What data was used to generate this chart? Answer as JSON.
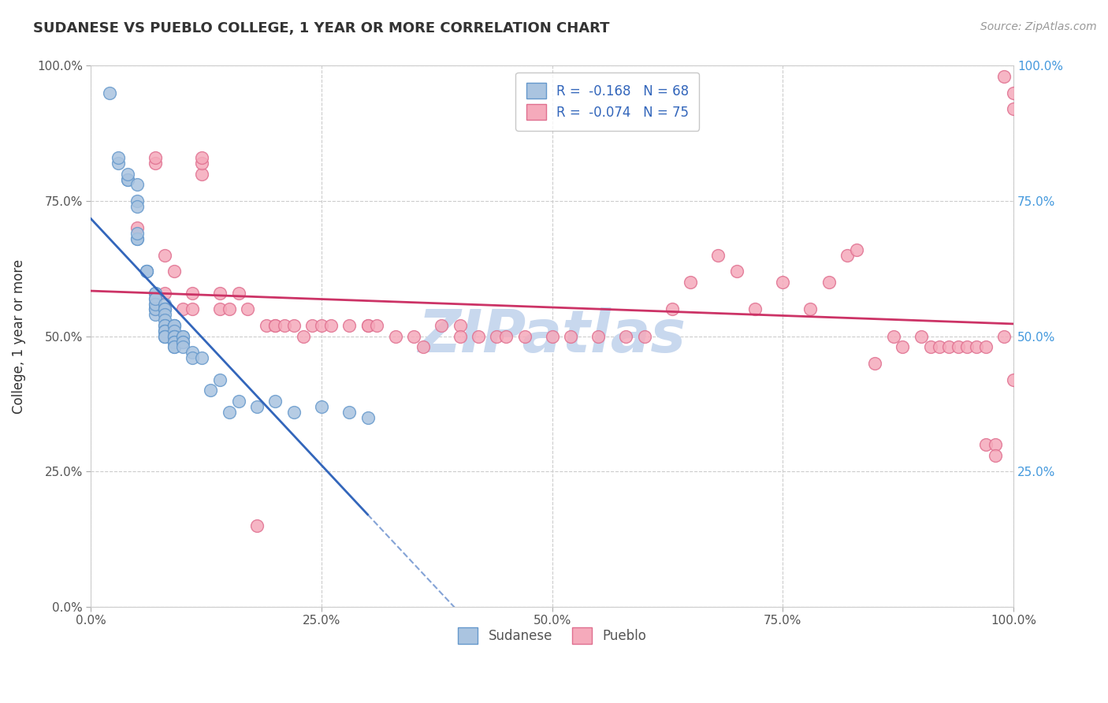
{
  "title": "SUDANESE VS PUEBLO COLLEGE, 1 YEAR OR MORE CORRELATION CHART",
  "source": "Source: ZipAtlas.com",
  "ylabel": "College, 1 year or more",
  "xlim": [
    0.0,
    1.0
  ],
  "ylim": [
    0.0,
    1.0
  ],
  "xtick_labels": [
    "0.0%",
    "25.0%",
    "50.0%",
    "75.0%",
    "100.0%"
  ],
  "xtick_values": [
    0.0,
    0.25,
    0.5,
    0.75,
    1.0
  ],
  "ytick_labels_left": [
    "0.0%",
    "25.0%",
    "50.0%",
    "75.0%",
    "100.0%"
  ],
  "ytick_labels_right": [
    "100.0%",
    "75.0%",
    "50.0%",
    "25.0%"
  ],
  "ytick_values": [
    0.0,
    0.25,
    0.5,
    0.75,
    1.0
  ],
  "ytick_values_right": [
    1.0,
    0.75,
    0.5,
    0.25
  ],
  "sudanese_color": "#aac4e0",
  "pueblo_color": "#f5aabb",
  "sudanese_edge": "#6699cc",
  "pueblo_edge": "#e07090",
  "trend_sudanese_color": "#3366bb",
  "trend_pueblo_color": "#cc3366",
  "sudanese_R": -0.168,
  "sudanese_N": 68,
  "pueblo_R": -0.074,
  "pueblo_N": 75,
  "legend_label_sudanese": "Sudanese",
  "legend_label_pueblo": "Pueblo",
  "background_color": "#ffffff",
  "grid_color": "#cccccc",
  "watermark_text": "ZIPatlas",
  "watermark_color": "#c8d8ee",
  "sudanese_x": [
    0.02,
    0.03,
    0.03,
    0.04,
    0.04,
    0.04,
    0.05,
    0.05,
    0.05,
    0.05,
    0.05,
    0.05,
    0.06,
    0.06,
    0.06,
    0.07,
    0.07,
    0.07,
    0.07,
    0.07,
    0.07,
    0.07,
    0.07,
    0.07,
    0.07,
    0.08,
    0.08,
    0.08,
    0.08,
    0.08,
    0.08,
    0.08,
    0.08,
    0.08,
    0.08,
    0.08,
    0.08,
    0.08,
    0.08,
    0.09,
    0.09,
    0.09,
    0.09,
    0.09,
    0.09,
    0.09,
    0.09,
    0.09,
    0.09,
    0.09,
    0.1,
    0.1,
    0.1,
    0.1,
    0.1,
    0.11,
    0.11,
    0.12,
    0.13,
    0.14,
    0.15,
    0.16,
    0.18,
    0.2,
    0.22,
    0.25,
    0.28,
    0.3
  ],
  "sudanese_y": [
    0.95,
    0.82,
    0.83,
    0.79,
    0.79,
    0.8,
    0.78,
    0.75,
    0.74,
    0.68,
    0.68,
    0.69,
    0.62,
    0.62,
    0.62,
    0.58,
    0.58,
    0.57,
    0.56,
    0.55,
    0.55,
    0.54,
    0.55,
    0.56,
    0.57,
    0.55,
    0.56,
    0.55,
    0.55,
    0.54,
    0.53,
    0.52,
    0.52,
    0.51,
    0.51,
    0.51,
    0.5,
    0.5,
    0.5,
    0.52,
    0.52,
    0.52,
    0.51,
    0.5,
    0.5,
    0.5,
    0.49,
    0.49,
    0.48,
    0.48,
    0.5,
    0.5,
    0.49,
    0.49,
    0.48,
    0.47,
    0.46,
    0.46,
    0.4,
    0.42,
    0.36,
    0.38,
    0.37,
    0.38,
    0.36,
    0.37,
    0.36,
    0.35
  ],
  "pueblo_x": [
    0.05,
    0.07,
    0.07,
    0.08,
    0.08,
    0.09,
    0.1,
    0.11,
    0.11,
    0.12,
    0.12,
    0.12,
    0.14,
    0.14,
    0.15,
    0.16,
    0.17,
    0.18,
    0.19,
    0.2,
    0.2,
    0.21,
    0.22,
    0.23,
    0.24,
    0.25,
    0.26,
    0.28,
    0.3,
    0.3,
    0.31,
    0.33,
    0.35,
    0.36,
    0.38,
    0.4,
    0.4,
    0.42,
    0.44,
    0.45,
    0.47,
    0.5,
    0.52,
    0.55,
    0.58,
    0.6,
    0.63,
    0.65,
    0.68,
    0.7,
    0.72,
    0.75,
    0.78,
    0.8,
    0.82,
    0.83,
    0.85,
    0.87,
    0.88,
    0.9,
    0.91,
    0.92,
    0.93,
    0.94,
    0.95,
    0.96,
    0.97,
    0.97,
    0.98,
    0.98,
    0.99,
    0.99,
    1.0,
    1.0,
    1.0
  ],
  "pueblo_y": [
    0.7,
    0.82,
    0.83,
    0.65,
    0.58,
    0.62,
    0.55,
    0.55,
    0.58,
    0.8,
    0.82,
    0.83,
    0.55,
    0.58,
    0.55,
    0.58,
    0.55,
    0.15,
    0.52,
    0.52,
    0.52,
    0.52,
    0.52,
    0.5,
    0.52,
    0.52,
    0.52,
    0.52,
    0.52,
    0.52,
    0.52,
    0.5,
    0.5,
    0.48,
    0.52,
    0.52,
    0.5,
    0.5,
    0.5,
    0.5,
    0.5,
    0.5,
    0.5,
    0.5,
    0.5,
    0.5,
    0.55,
    0.6,
    0.65,
    0.62,
    0.55,
    0.6,
    0.55,
    0.6,
    0.65,
    0.66,
    0.45,
    0.5,
    0.48,
    0.5,
    0.48,
    0.48,
    0.48,
    0.48,
    0.48,
    0.48,
    0.48,
    0.3,
    0.3,
    0.28,
    0.5,
    0.98,
    0.92,
    0.95,
    0.42
  ]
}
